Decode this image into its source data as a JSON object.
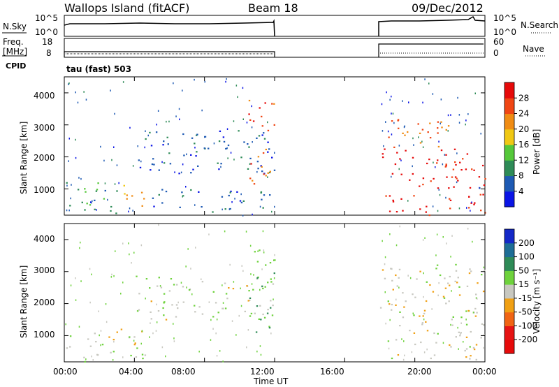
{
  "header": {
    "site": "Wallops Island (fitACF)",
    "beam": "Beam 18",
    "date": "09/Dec/2012"
  },
  "status_panels": {
    "nsky_label": "N.Sky",
    "nsky_ticks": [
      "10^5",
      "10^0"
    ],
    "nsearch_label": "N.Search",
    "nsearch_ticks": [
      "10^5",
      "10^0"
    ],
    "freq_label_line1": "Freq.",
    "freq_label_line2": "[MHz]",
    "freq_ticks": [
      "18",
      "8"
    ],
    "nave_label": "Nave",
    "nave_ticks": [
      "60",
      "0"
    ],
    "cpid_label": "CPID",
    "cpid_value": "tau (fast) 503"
  },
  "axes": {
    "x_ticks": [
      "00:00",
      "04:00",
      "08:00",
      "12:00",
      "16:00",
      "20:00",
      "00:00"
    ],
    "x_label": "Time UT",
    "y_ticks": [
      "1000",
      "2000",
      "3000",
      "4000"
    ],
    "y_label": "Slant Range [km]"
  },
  "power_scale": {
    "label": "Power [dB]",
    "ticks": [
      "4",
      "8",
      "12",
      "16",
      "20",
      "24",
      "28"
    ],
    "colors": [
      "#0a14e6",
      "#1e5ab4",
      "#2e8b57",
      "#55c83a",
      "#f0c814",
      "#f08c14",
      "#f04614",
      "#e60a0a"
    ]
  },
  "velocity_scale": {
    "label": "Velocity [m s⁻¹]",
    "ticks": [
      "200",
      "100",
      "50",
      "15",
      "-15",
      "-50",
      "-100",
      "-200"
    ],
    "colors": [
      "#1428c8",
      "#1e6e96",
      "#2e8b57",
      "#6ed23c",
      "#c8c8c0",
      "#f0a014",
      "#f06414",
      "#e61414",
      "#e60a0a"
    ]
  },
  "chart_data": [
    {
      "type": "heatmap",
      "name": "power",
      "x_range_hours": [
        0,
        24
      ],
      "y_range_km": [
        180,
        4500
      ],
      "data_gap_hours": [
        12.0,
        18.0
      ],
      "echo_regions": [
        {
          "t0": 0.1,
          "t1": 3.2,
          "r0": 200,
          "r1": 1300,
          "value_db": 8
        },
        {
          "t0": 3.0,
          "t1": 4.6,
          "r0": 400,
          "r1": 1200,
          "value_db": 18
        },
        {
          "t0": 5.0,
          "t1": 12.0,
          "r0": 300,
          "r1": 1000,
          "value_db": 5
        },
        {
          "t0": 4.0,
          "t1": 12.0,
          "r0": 1500,
          "r1": 2900,
          "value_db": 4
        },
        {
          "t0": 10.5,
          "t1": 12.0,
          "r0": 1100,
          "r1": 3800,
          "value_db": 24
        },
        {
          "t0": 18.0,
          "t1": 22.0,
          "r0": 2300,
          "r1": 3300,
          "value_db": 22
        },
        {
          "t0": 18.0,
          "t1": 24.0,
          "r0": 200,
          "r1": 2300,
          "value_db": 28
        }
      ]
    },
    {
      "type": "heatmap",
      "name": "velocity",
      "x_range_hours": [
        0,
        24
      ],
      "y_range_km": [
        180,
        4500
      ],
      "data_gap_hours": [
        12.0,
        18.0
      ],
      "echo_regions": [
        {
          "t0": 0.1,
          "t1": 4.6,
          "r0": 200,
          "r1": 1300,
          "value_ms": 0
        },
        {
          "t0": 4.0,
          "t1": 12.0,
          "r0": 1500,
          "r1": 2900,
          "value_ms": 10
        },
        {
          "t0": 10.5,
          "t1": 12.0,
          "r0": 1100,
          "r1": 3800,
          "value_ms": 40
        },
        {
          "t0": 18.0,
          "t1": 24.0,
          "r0": 200,
          "r1": 3300,
          "value_ms": -5
        }
      ]
    }
  ]
}
